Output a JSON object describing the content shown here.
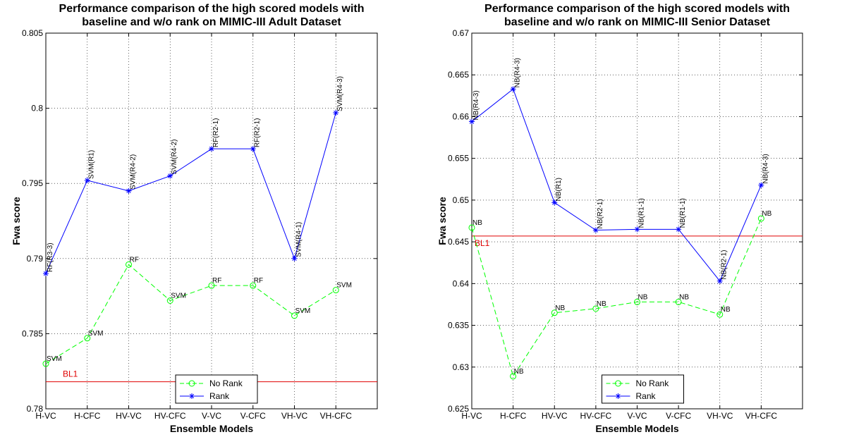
{
  "chart_data": [
    {
      "type": "line",
      "title": [
        "Performance comparison of the high scored models with",
        "baseline and w/o rank on MIMIC-III Adult Dataset"
      ],
      "xlabel": "Ensemble Models",
      "ylabel": "Fwa score",
      "categories": [
        "H-VC",
        "H-CFC",
        "HV-VC",
        "HV-CFC",
        "V-VC",
        "V-CFC",
        "VH-VC",
        "VH-CFC"
      ],
      "ylim": [
        0.78,
        0.805
      ],
      "yticks": [
        0.78,
        0.785,
        0.79,
        0.795,
        0.8,
        0.805
      ],
      "ytick_labels": [
        "0.78",
        "0.785",
        "0.79",
        "0.795",
        "0.8",
        "0.805"
      ],
      "grid": true,
      "legend_position": "bottom-center",
      "series": [
        {
          "name": "No Rank",
          "color": "#00ff00",
          "line_style": "dashed",
          "marker": "circle",
          "values": [
            0.783,
            0.7847,
            0.7896,
            0.7872,
            0.7882,
            0.7882,
            0.7862,
            0.7879
          ],
          "labels": [
            "SVM",
            "SVM",
            "RF",
            "SVM",
            "RF",
            "RF",
            "SVM",
            "SVM"
          ]
        },
        {
          "name": "Rank",
          "color": "#0000ff",
          "line_style": "solid",
          "marker": "star",
          "values": [
            0.789,
            0.7952,
            0.7945,
            0.7955,
            0.7973,
            0.7973,
            0.79,
            0.7997
          ],
          "labels": [
            "RF(R3-3)",
            "SVM(R1)",
            "SVM(R4-2)",
            "SVM(R4-2)",
            "RF(R2-1)",
            "RF(R2-1)",
            "SVM(R4-1)",
            "SVM(R4-3)"
          ]
        }
      ],
      "baseline": {
        "label": "BL1",
        "value": 0.7818,
        "color": "#e00000"
      }
    },
    {
      "type": "line",
      "title": [
        "Performance comparison of the high scored models with",
        "baseline and w/o rank on MIMIC-III Senior Dataset"
      ],
      "xlabel": "Ensemble Models",
      "ylabel": "Fwa score",
      "categories": [
        "H-VC",
        "H-CFC",
        "HV-VC",
        "HV-CFC",
        "V-VC",
        "V-CFC",
        "VH-VC",
        "VH-CFC"
      ],
      "ylim": [
        0.625,
        0.67
      ],
      "yticks": [
        0.625,
        0.63,
        0.635,
        0.64,
        0.645,
        0.65,
        0.655,
        0.66,
        0.665,
        0.67
      ],
      "ytick_labels": [
        "0.625",
        "0.63",
        "0.635",
        "0.64",
        "0.645",
        "0.65",
        "0.655",
        "0.66",
        "0.665",
        "0.67"
      ],
      "grid": true,
      "legend_position": "bottom-center",
      "series": [
        {
          "name": "No Rank",
          "color": "#00ff00",
          "line_style": "dashed",
          "marker": "circle",
          "values": [
            0.6467,
            0.6289,
            0.6365,
            0.637,
            0.6378,
            0.6378,
            0.6363,
            0.6478
          ],
          "labels": [
            "NB",
            "NB",
            "NB",
            "NB",
            "NB",
            "NB",
            "NB",
            "NB"
          ]
        },
        {
          "name": "Rank",
          "color": "#0000ff",
          "line_style": "solid",
          "marker": "star",
          "values": [
            0.6594,
            0.6633,
            0.6497,
            0.6464,
            0.6465,
            0.6465,
            0.6403,
            0.6518
          ],
          "labels": [
            "NB(R4-3)",
            "NB(R4-3)",
            "NB(R1)",
            "NB(R2-1)",
            "NB(R1-1)",
            "NB(R1-1)",
            "NB(R2-1)",
            "NB(R4-3)"
          ]
        }
      ],
      "baseline": {
        "label": "BL1",
        "value": 0.6457,
        "color": "#e00000"
      }
    }
  ]
}
